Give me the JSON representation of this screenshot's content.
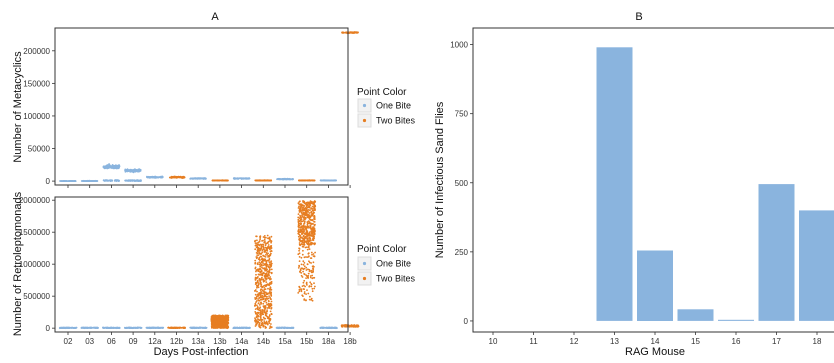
{
  "colors": {
    "one_bite": "#8AB4DE",
    "two_bites": "#E67E22",
    "axis": "#333333",
    "panel_border": "#333333"
  },
  "chart_data": [
    {
      "id": "A-top",
      "type": "scatter",
      "title": "A",
      "xlabel": "",
      "ylabel": "Number of Metacyclics",
      "categories": [
        "02",
        "03",
        "06",
        "09",
        "12a",
        "12b",
        "13a",
        "13b",
        "14a",
        "14b",
        "15a",
        "15b",
        "18a",
        "18b"
      ],
      "groups": [
        "One Bite",
        "One Bite",
        "One Bite",
        "One Bite",
        "One Bite",
        "Two Bites",
        "One Bite",
        "Two Bites",
        "One Bite",
        "Two Bites",
        "One Bite",
        "Two Bites",
        "One Bite",
        "Two Bites"
      ],
      "center": [
        0,
        0,
        22000,
        16000,
        6000,
        6000,
        4000,
        1000,
        4000,
        1000,
        3000,
        1000,
        1000,
        228000
      ],
      "spread": [
        1200,
        2200,
        14000,
        9000,
        4500,
        4500,
        3000,
        1200,
        3000,
        1200,
        2500,
        1000,
        1500,
        3000
      ],
      "ylim": [
        -6000,
        235000
      ],
      "yticks": [
        0,
        50000,
        100000,
        150000,
        200000
      ],
      "ytick_labels": [
        "0",
        "50000",
        "100000",
        "150000",
        "200000"
      ],
      "grid": false
    },
    {
      "id": "A-bottom",
      "type": "scatter",
      "title": "",
      "xlabel": "Days Post-infection",
      "ylabel": "Number of Retroleptomonads",
      "categories": [
        "02",
        "03",
        "06",
        "09",
        "12a",
        "12b",
        "13a",
        "13b",
        "14a",
        "14b",
        "15a",
        "15b",
        "18a",
        "18b"
      ],
      "tick_labels": [
        "02",
        "03",
        "06",
        "09",
        "12a",
        "12b",
        "13a",
        "13b",
        "14a",
        "14b",
        "15a",
        "15b",
        "18a",
        "18b"
      ],
      "groups": [
        "One Bite",
        "One Bite",
        "One Bite",
        "One Bite",
        "One Bite",
        "Two Bites",
        "One Bite",
        "Two Bites",
        "One Bite",
        "Two Bites",
        "One Bite",
        "Two Bites",
        "One Bite",
        "Two Bites"
      ],
      "min": [
        0,
        0,
        0,
        0,
        0,
        0,
        0,
        0,
        0,
        0,
        0,
        400000,
        0,
        20000
      ],
      "max": [
        10000,
        10000,
        10000,
        10000,
        10000,
        10000,
        10000,
        200000,
        10000,
        1450000,
        10000,
        1990000,
        10000,
        50000
      ],
      "ylim": [
        -60000,
        2050000
      ],
      "yticks": [
        0,
        500000,
        1000000,
        1500000,
        2000000
      ],
      "ytick_labels": [
        "0",
        "500000",
        "1000000",
        "1500000",
        "2000000"
      ],
      "grid": false
    },
    {
      "id": "B",
      "type": "bar",
      "title": "B",
      "xlabel": "RAG Mouse",
      "ylabel": "Number of Infectious Sand Flies",
      "categories": [
        "10",
        "11",
        "12",
        "13",
        "14",
        "15",
        "16",
        "17",
        "18"
      ],
      "values": [
        0,
        0,
        0,
        990,
        255,
        42,
        4,
        495,
        400
      ],
      "ylim": [
        -40,
        1060
      ],
      "yticks": [
        0,
        250,
        500,
        750,
        1000
      ],
      "ytick_labels": [
        "0",
        "250",
        "500",
        "750",
        "1000"
      ],
      "grid": false
    }
  ],
  "legend": {
    "title": "Point Color",
    "items": [
      {
        "label": "One Bite",
        "color": "#8AB4DE"
      },
      {
        "label": "Two Bites",
        "color": "#E67E22"
      }
    ]
  }
}
